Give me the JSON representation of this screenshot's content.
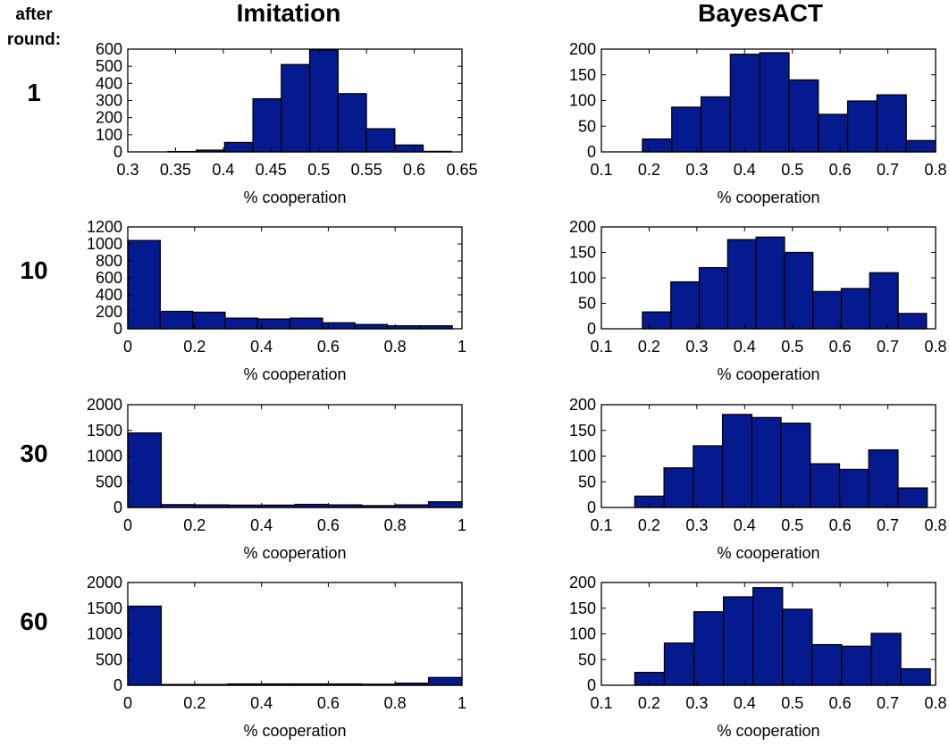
{
  "chart_data": {
    "column_titles": [
      "Imitation",
      "BayesACT"
    ],
    "row_header": [
      "after",
      "round:"
    ],
    "row_labels": [
      "1",
      "10",
      "30",
      "60"
    ],
    "bar_color": "#061a8f",
    "panels": [
      {
        "type": "bar",
        "method": "Imitation",
        "round": "1",
        "xlabel": "% cooperation",
        "xlim": [
          0.3,
          0.65
        ],
        "ylim": [
          0,
          600
        ],
        "xticks": [
          0.3,
          0.35,
          0.4,
          0.45,
          0.5,
          0.55,
          0.6,
          0.65
        ],
        "yticks": [
          0,
          100,
          200,
          300,
          400,
          500,
          600
        ],
        "bin_range": [
          0.342,
          0.639
        ],
        "values": [
          2,
          10,
          55,
          310,
          510,
          595,
          340,
          135,
          40,
          3
        ]
      },
      {
        "type": "bar",
        "method": "BayesACT",
        "round": "1",
        "xlabel": "% cooperation",
        "xlim": [
          0.1,
          0.8
        ],
        "ylim": [
          0,
          200
        ],
        "xticks": [
          0.1,
          0.2,
          0.3,
          0.4,
          0.5,
          0.6,
          0.7,
          0.8
        ],
        "yticks": [
          0,
          50,
          100,
          150,
          200
        ],
        "bin_range": [
          0.186,
          0.8
        ],
        "values": [
          25,
          87,
          107,
          190,
          193,
          140,
          73,
          99,
          111,
          22
        ]
      },
      {
        "type": "bar",
        "method": "Imitation",
        "round": "10",
        "xlabel": "% cooperation",
        "xlim": [
          0,
          1
        ],
        "ylim": [
          0,
          1200
        ],
        "xticks": [
          0,
          0.2,
          0.4,
          0.6,
          0.8,
          1
        ],
        "yticks": [
          0,
          200,
          400,
          600,
          800,
          1000,
          1200
        ],
        "bin_range": [
          0,
          0.971
        ],
        "values": [
          1040,
          205,
          195,
          125,
          115,
          125,
          70,
          50,
          35,
          35
        ]
      },
      {
        "type": "bar",
        "method": "BayesACT",
        "round": "10",
        "xlabel": "% cooperation",
        "xlim": [
          0.1,
          0.8
        ],
        "ylim": [
          0,
          200
        ],
        "xticks": [
          0.1,
          0.2,
          0.3,
          0.4,
          0.5,
          0.6,
          0.7,
          0.8
        ],
        "yticks": [
          0,
          50,
          100,
          150,
          200
        ],
        "bin_range": [
          0.186,
          0.781
        ],
        "values": [
          33,
          92,
          120,
          175,
          180,
          150,
          73,
          79,
          110,
          30
        ]
      },
      {
        "type": "bar",
        "method": "Imitation",
        "round": "30",
        "xlabel": "% cooperation",
        "xlim": [
          0,
          1
        ],
        "ylim": [
          0,
          2000
        ],
        "xticks": [
          0,
          0.2,
          0.4,
          0.6,
          0.8,
          1
        ],
        "yticks": [
          0,
          500,
          1000,
          1500,
          2000
        ],
        "bin_range": [
          0,
          1
        ],
        "values": [
          1450,
          55,
          50,
          45,
          45,
          60,
          50,
          35,
          50,
          110
        ]
      },
      {
        "type": "bar",
        "method": "BayesACT",
        "round": "30",
        "xlabel": "% cooperation",
        "xlim": [
          0.1,
          0.8
        ],
        "ylim": [
          0,
          200
        ],
        "xticks": [
          0.1,
          0.2,
          0.3,
          0.4,
          0.5,
          0.6,
          0.7,
          0.8
        ],
        "yticks": [
          0,
          50,
          100,
          150,
          200
        ],
        "bin_range": [
          0.17,
          0.7825
        ],
        "values": [
          22,
          77,
          120,
          181,
          175,
          164,
          85,
          74,
          112,
          38
        ]
      },
      {
        "type": "bar",
        "method": "Imitation",
        "round": "60",
        "xlabel": "% cooperation",
        "xlim": [
          0,
          1
        ],
        "ylim": [
          0,
          2000
        ],
        "xticks": [
          0,
          0.2,
          0.4,
          0.6,
          0.8,
          1
        ],
        "yticks": [
          0,
          500,
          1000,
          1500,
          2000
        ],
        "bin_range": [
          0,
          1
        ],
        "values": [
          1540,
          15,
          15,
          25,
          25,
          25,
          25,
          20,
          40,
          150
        ]
      },
      {
        "type": "bar",
        "method": "BayesACT",
        "round": "60",
        "xlabel": "% cooperation",
        "xlim": [
          0.1,
          0.8
        ],
        "ylim": [
          0,
          200
        ],
        "xticks": [
          0.1,
          0.2,
          0.3,
          0.4,
          0.5,
          0.6,
          0.7,
          0.8
        ],
        "yticks": [
          0,
          50,
          100,
          150,
          200
        ],
        "bin_range": [
          0.17,
          0.789
        ],
        "values": [
          25,
          82,
          143,
          172,
          190,
          148,
          79,
          76,
          101,
          32
        ]
      }
    ]
  }
}
